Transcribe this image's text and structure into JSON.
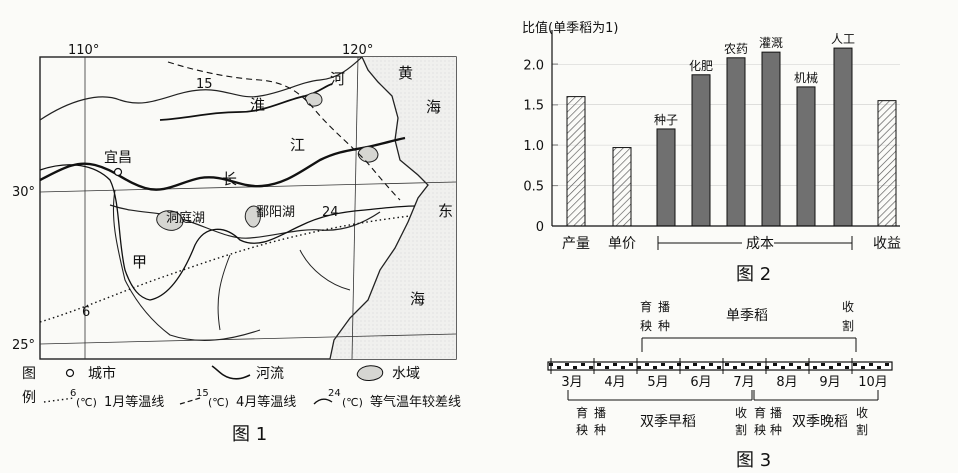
{
  "map": {
    "lon_labels": [
      "110°",
      "120°"
    ],
    "lat_labels": [
      "30°",
      "25°"
    ],
    "places": {
      "yichang": "宜昌",
      "dongting": "洞庭湖",
      "poyang": "鄱阳湖",
      "jia": "甲",
      "huang": "黄",
      "hai1": "海",
      "dong": "东",
      "hai2": "海",
      "huai": "淮",
      "he": "河",
      "chang": "长",
      "jiang": "江"
    },
    "isoline_labels": {
      "jan": "6",
      "apr": "15",
      "range": "24"
    },
    "legend": {
      "tu": "图",
      "li": "例",
      "city": "城市",
      "river": "河流",
      "water": "水域",
      "jan_iso": "1月等温线",
      "apr_iso": "4月等温线",
      "range_iso": "等气温年较差线",
      "jan_val": "6",
      "apr_val": "15",
      "range_val": "24",
      "unit": "(℃)"
    },
    "caption": "图 1"
  },
  "chart_data": {
    "type": "bar",
    "ylabel": "比值(单季稻为1)",
    "ylim": [
      0,
      2.3
    ],
    "yticks": [
      "0",
      "0.5",
      "1.0",
      "1.5",
      "2.0"
    ],
    "categories": [
      "产量",
      "单价",
      "种子",
      "化肥",
      "农药",
      "灌溉",
      "机械",
      "人工",
      "收益"
    ],
    "values": [
      1.6,
      0.97,
      1.2,
      1.87,
      2.08,
      2.15,
      1.72,
      2.2,
      1.55
    ],
    "bar_labels": [
      "",
      "",
      "种子",
      "化肥",
      "农药",
      "灌溉",
      "机械",
      "人工",
      ""
    ],
    "bar_kind": [
      "hatched",
      "hatched",
      "solid",
      "solid",
      "solid",
      "solid",
      "solid",
      "solid",
      "hatched"
    ],
    "x_labels": [
      "产量",
      "单价",
      "收益"
    ],
    "cost_group_label": "成本",
    "caption": "图 2",
    "colors": {
      "solid": "#707070",
      "hatched_line": "#555555"
    }
  },
  "timeline": {
    "months": [
      "3月",
      "4月",
      "5月",
      "6月",
      "7月",
      "8月",
      "9月",
      "10月"
    ],
    "single": {
      "start_top": "育",
      "start_top2": "播",
      "start_bot": "秧",
      "start_bot2": "种",
      "name": "单季稻",
      "end_top": "收",
      "end_bot": "割"
    },
    "double_early": {
      "start_top": "育",
      "start_top2": "播",
      "start_bot": "秧",
      "start_bot2": "种",
      "name": "双季早稻",
      "end_top": "收",
      "end_bot": "割"
    },
    "double_late": {
      "start_top": "育",
      "start_top2": "播",
      "start_bot": "秧",
      "start_bot2": "种",
      "name": "双季晚稻",
      "end_top": "收",
      "end_bot": "割"
    },
    "caption": "图 3"
  }
}
